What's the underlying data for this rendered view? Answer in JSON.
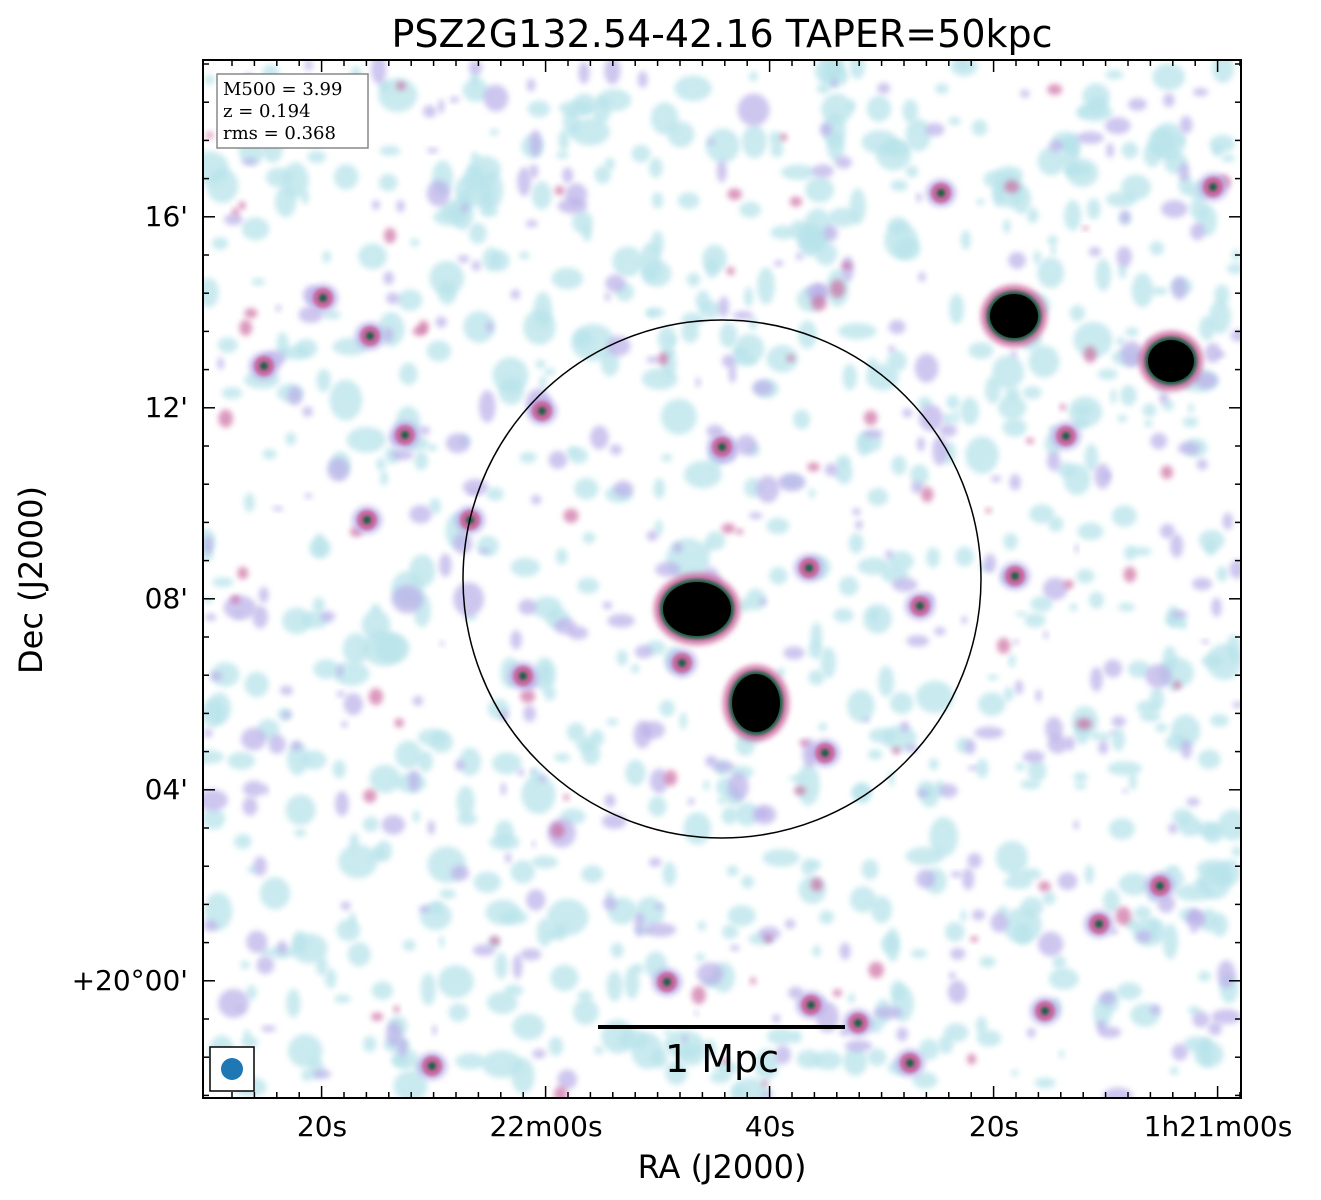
{
  "figure": {
    "title": "PSZ2G132.54-42.16 TAPER=50kpc",
    "xlabel": "RA (J2000)",
    "ylabel": "Dec (J2000)"
  },
  "axes": {
    "x_ticks": [
      "20s",
      "22m00s",
      "40s",
      "20s",
      "1h21m00s"
    ],
    "y_ticks": [
      "16'",
      "12'",
      "08'",
      "04'",
      "+20°00'"
    ]
  },
  "info_box": {
    "lines": [
      "M500 = 3.99",
      "z = 0.194",
      "rms = 0.368"
    ]
  },
  "scale_bar": {
    "label": "1 Mpc"
  },
  "colors": {
    "beam": "#1f77b4",
    "low_emission": "#b7e3ea",
    "mid_emission": "#b9aee8",
    "high_emission": "#c9629a",
    "peak_core": "#0b5e3c",
    "bright_source": "#000000",
    "circle": "#000000"
  },
  "image": {
    "description_free": true
  }
}
